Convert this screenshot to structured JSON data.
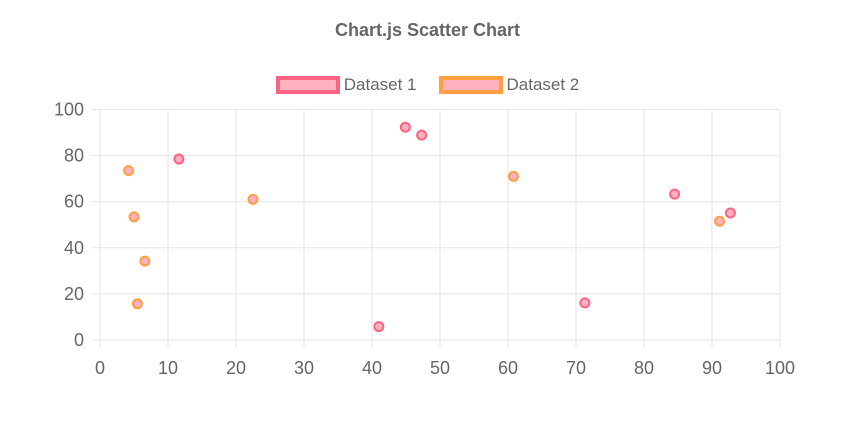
{
  "chart_data": {
    "type": "scatter",
    "title": "Chart.js Scatter Chart",
    "legend_position": "top",
    "grid": true,
    "xlabel": "",
    "ylabel": "",
    "xlim": [
      0,
      100
    ],
    "ylim": [
      0,
      100
    ],
    "x_ticks": [
      0,
      10,
      20,
      30,
      40,
      50,
      60,
      70,
      80,
      90,
      100
    ],
    "y_ticks": [
      0,
      20,
      40,
      60,
      80,
      100
    ],
    "text_color": "#666666",
    "grid_color": "#E5E5E5",
    "series": [
      {
        "name": "Dataset 1",
        "border_color": "#FF6384",
        "fill_color": "#FFB1C1",
        "points": [
          {
            "x": 11.6,
            "y": 78.5
          },
          {
            "x": 41.0,
            "y": 5.8
          },
          {
            "x": 44.9,
            "y": 92.3
          },
          {
            "x": 47.3,
            "y": 88.9
          },
          {
            "x": 71.3,
            "y": 16.1
          },
          {
            "x": 84.5,
            "y": 63.3
          },
          {
            "x": 92.7,
            "y": 55.1
          }
        ]
      },
      {
        "name": "Dataset 2",
        "border_color": "#FF9F40",
        "fill_color": "#FFB1C1",
        "points": [
          {
            "x": 4.2,
            "y": 73.5
          },
          {
            "x": 5.0,
            "y": 53.4
          },
          {
            "x": 5.5,
            "y": 15.7
          },
          {
            "x": 6.6,
            "y": 34.2
          },
          {
            "x": 22.5,
            "y": 61.0
          },
          {
            "x": 60.8,
            "y": 71.0
          },
          {
            "x": 91.1,
            "y": 51.5
          }
        ]
      }
    ]
  }
}
